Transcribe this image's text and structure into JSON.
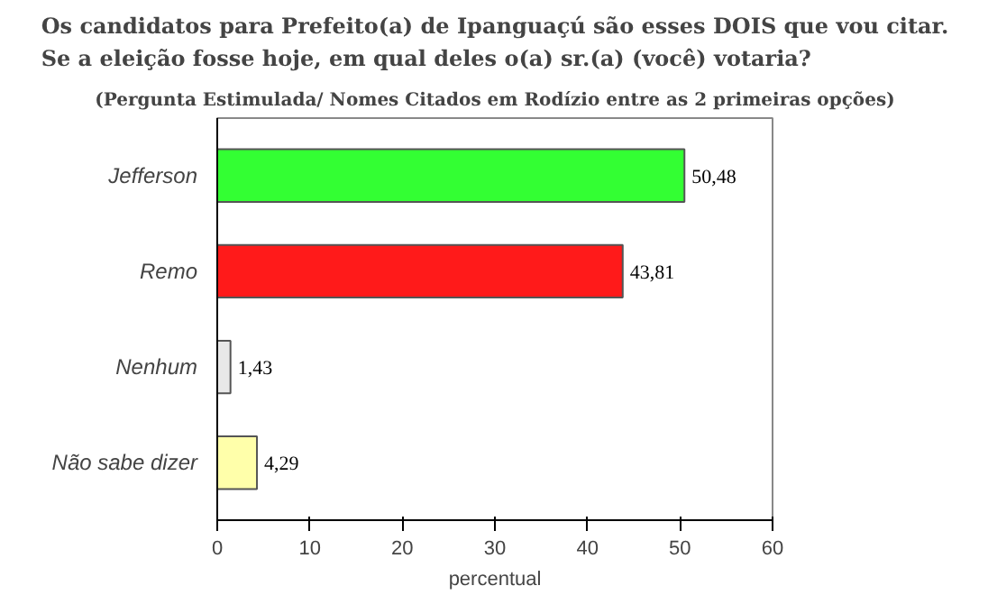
{
  "chart_data": {
    "type": "bar",
    "orientation": "horizontal",
    "title": "Os candidatos para Prefeito(a) de Ipanguaçú são esses DOIS que vou citar.\nSe a eleição fosse hoje, em qual deles o(a) sr.(a) (você) votaria?",
    "subtitle": "(Pergunta Estimulada/ Nomes Citados em Rodízio entre as 2 primeiras opções)",
    "categories": [
      "Jefferson",
      "Remo",
      "Nenhum",
      "Não sabe dizer"
    ],
    "values": [
      50.48,
      43.81,
      1.43,
      4.29
    ],
    "colors": [
      "#33ff33",
      "#ff1a1a",
      "#e8e8e8",
      "#ffffaa"
    ],
    "value_labels": [
      "50,48",
      "43,81",
      "1,43",
      "4,29"
    ],
    "xlabel": "percentual",
    "xlim": [
      0,
      60
    ],
    "xticks": [
      0,
      10,
      20,
      30,
      40,
      50,
      60
    ],
    "grid": false
  }
}
